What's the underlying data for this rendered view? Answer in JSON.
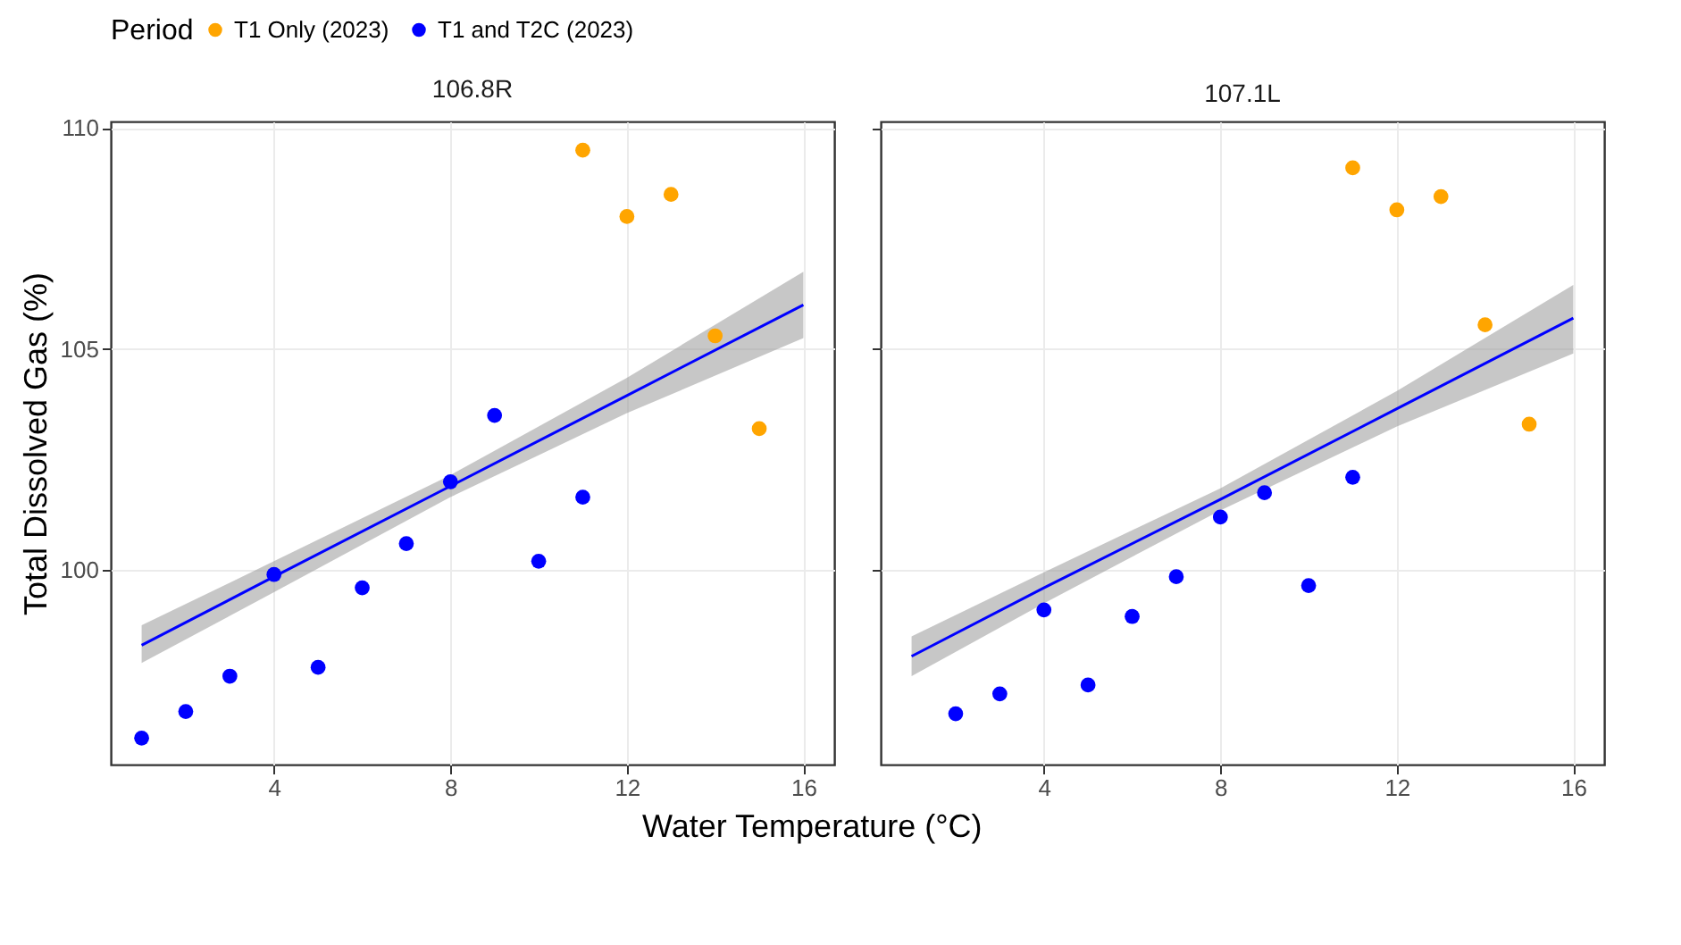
{
  "chart_data": [
    {
      "type": "scatter",
      "title": "106.8R",
      "xlabel": "Water Temperature (°C)",
      "ylabel": "Total Dissolved Gas (%)",
      "legend_title": "Period",
      "legend": "top",
      "grid": true,
      "xlim": [
        0.3,
        16.7
      ],
      "xticks": [
        4,
        8,
        12,
        16
      ],
      "ylim": [
        95.6,
        110.15
      ],
      "yticks": [
        100,
        105,
        110
      ],
      "series": [
        {
          "name": "T1 Only (2023)",
          "color": "#ffa500",
          "marker": "circle",
          "x": [
            11,
            12,
            13,
            14,
            15
          ],
          "values": [
            109.5,
            108.0,
            108.5,
            105.3,
            103.2
          ]
        },
        {
          "name": "T1 and T2C (2023)",
          "color": "#0000ff",
          "marker": "circle",
          "x": [
            1,
            2,
            3,
            4,
            5,
            6,
            7,
            8,
            9,
            10,
            11
          ],
          "values": [
            96.2,
            96.8,
            97.6,
            99.9,
            97.8,
            99.6,
            100.6,
            102.0,
            103.5,
            100.2,
            101.65
          ]
        },
        {
          "color": "#0000ff",
          "type": "line",
          "x": [
            1,
            4,
            8,
            12,
            16
          ],
          "values": [
            98.3,
            99.85,
            101.9,
            103.95,
            106.0
          ],
          "lower": [
            97.9,
            99.5,
            101.65,
            103.55,
            105.25
          ],
          "upper": [
            98.75,
            100.2,
            102.15,
            104.35,
            106.75
          ]
        }
      ]
    },
    {
      "type": "scatter",
      "title": "107.1L",
      "grid": true,
      "tick_labels": "x",
      "xlim": [
        0.3,
        16.7
      ],
      "xticks": [
        4,
        8,
        12,
        16
      ],
      "ylim": [
        95.6,
        110.15
      ],
      "yticks": [
        100,
        105,
        110
      ],
      "series": [
        {
          "name": "T1 Only (2023)",
          "color": "#ffa500",
          "marker": "circle",
          "x": [
            11,
            12,
            13,
            14,
            15
          ],
          "values": [
            109.1,
            108.15,
            108.45,
            105.55,
            103.3
          ]
        },
        {
          "name": "T1 and T2C (2023)",
          "color": "#0000ff",
          "marker": "circle",
          "x": [
            2,
            3,
            4,
            5,
            6,
            7,
            8,
            9,
            10,
            11
          ],
          "values": [
            96.75,
            97.2,
            99.1,
            97.4,
            98.95,
            99.85,
            101.2,
            101.75,
            99.65,
            102.1
          ]
        },
        {
          "color": "#0000ff",
          "type": "line",
          "x": [
            1,
            4,
            8,
            12,
            16
          ],
          "values": [
            98.05,
            99.6,
            101.6,
            103.65,
            105.7
          ],
          "lower": [
            97.6,
            99.25,
            101.35,
            103.25,
            104.9
          ],
          "upper": [
            98.5,
            99.95,
            101.85,
            104.05,
            106.45
          ]
        }
      ]
    }
  ]
}
